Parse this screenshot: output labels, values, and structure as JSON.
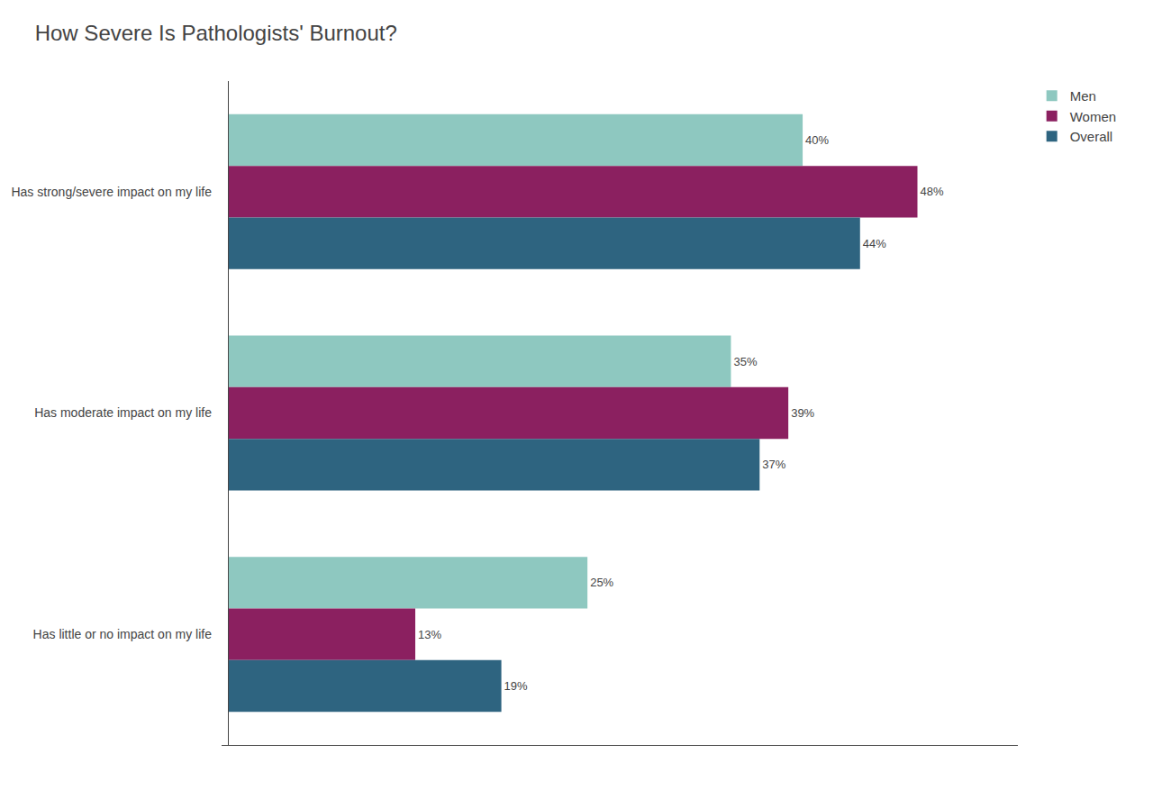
{
  "chart_data": {
    "type": "bar",
    "orientation": "horizontal",
    "title": "How Severe Is Pathologists' Burnout?",
    "categories": [
      "Has strong/severe impact on my life",
      "Has moderate impact on my life",
      "Has little or no impact on my life"
    ],
    "series": [
      {
        "name": "Men",
        "color": "#8ec8c0",
        "values": [
          40,
          35,
          25
        ],
        "value_labels": [
          "40%",
          "35%",
          "25%"
        ]
      },
      {
        "name": "Women",
        "color": "#8b2060",
        "values": [
          48,
          39,
          13
        ],
        "value_labels": [
          "48%",
          "39%",
          "13%"
        ]
      },
      {
        "name": "Overall",
        "color": "#2e6480",
        "values": [
          44,
          37,
          19
        ],
        "value_labels": [
          "44%",
          "37%",
          "19%"
        ]
      }
    ],
    "xlim": [
      -0.5,
      55
    ],
    "tick_labels": "y",
    "grid": false,
    "legend": "right",
    "data_labels": true
  }
}
